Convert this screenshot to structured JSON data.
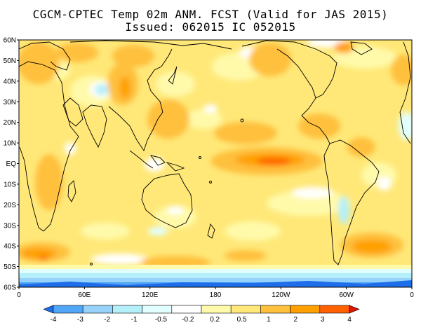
{
  "title": {
    "line1": "CGCM-CPTEC Temp 02m ANM. FCST  (Valid for JAS 2015)",
    "line2": "Issued:  062015 IC 052015"
  },
  "latitude_labels": [
    "60N",
    "50N",
    "40N",
    "30N",
    "20N",
    "10N",
    "EQ",
    "10S",
    "20S",
    "30S",
    "40S",
    "50S",
    "60S"
  ],
  "longitude_labels": [
    "0",
    "60E",
    "120E",
    "180",
    "120W",
    "60W",
    "0"
  ],
  "colorbar": {
    "levels": [
      "-4",
      "-3",
      "-2",
      "-1",
      "-0.5",
      "-0.2",
      "0.2",
      "0.5",
      "1",
      "2",
      "3",
      "4"
    ],
    "colors": [
      "#1e6eeb",
      "#50a5f5",
      "#96d2fa",
      "#b4f0fa",
      "#e1ffff",
      "#ffffff",
      "#fffaaa",
      "#ffe878",
      "#ffc03c",
      "#ffa000",
      "#ff6000",
      "#e11400"
    ]
  },
  "colors": {
    "land_outline": "#000000",
    "background": "#ffffff"
  }
}
